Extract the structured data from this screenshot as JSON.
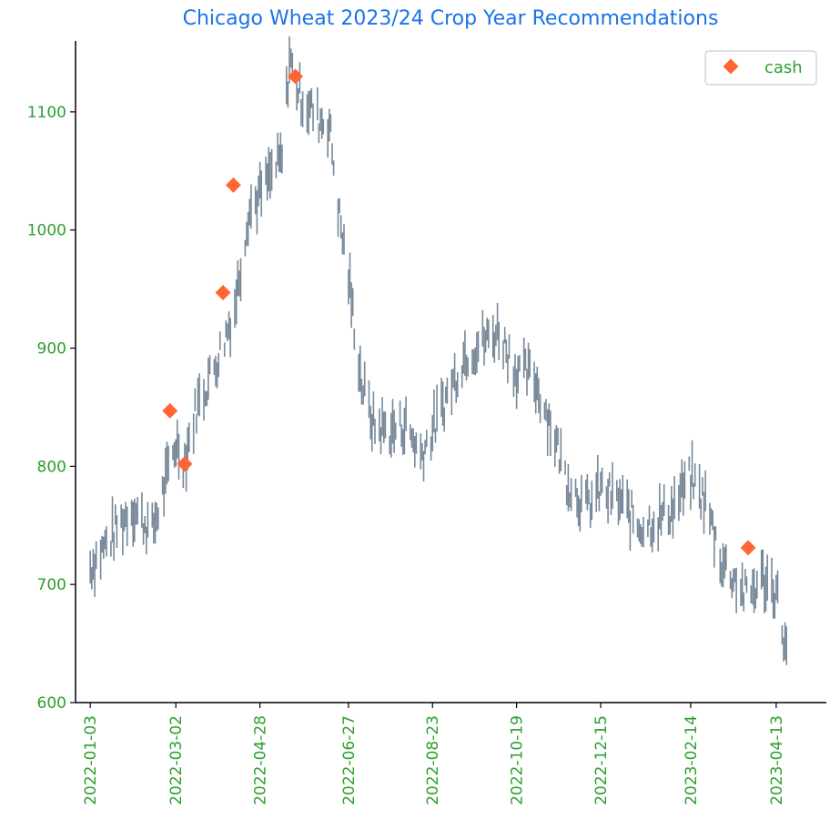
{
  "chart_data": {
    "type": "line",
    "title": "Chicago Wheat 2023/24 Crop Year Recommendations",
    "xlabel": "",
    "ylabel": "",
    "ylim": [
      600,
      1160
    ],
    "xlim": [
      "2021-12-24",
      "2023-05-17"
    ],
    "y_ticks": [
      600,
      700,
      800,
      900,
      1000,
      1100
    ],
    "x_ticks": [
      "2022-01-03",
      "2022-03-02",
      "2022-04-28",
      "2022-06-27",
      "2022-08-23",
      "2022-10-19",
      "2022-12-15",
      "2023-02-14",
      "2023-04-13"
    ],
    "grid": false,
    "legend": {
      "position": "top-right",
      "entries": [
        "cash"
      ]
    },
    "colors": {
      "price": "#778899",
      "cash": "#ff6633",
      "title": "#1a73e8",
      "ticks": "#2ca02c"
    },
    "series": [
      {
        "kind": "price-range",
        "x": [
          "2022-01-03",
          "2022-01-17",
          "2022-01-31",
          "2022-02-14",
          "2022-02-24",
          "2022-03-02",
          "2022-03-08",
          "2022-03-16",
          "2022-03-30",
          "2022-04-11",
          "2022-04-20",
          "2022-04-28",
          "2022-05-05",
          "2022-05-13",
          "2022-05-18",
          "2022-05-25",
          "2022-06-06",
          "2022-06-14",
          "2022-06-21",
          "2022-06-27",
          "2022-07-06",
          "2022-07-14",
          "2022-07-26",
          "2022-08-05",
          "2022-08-15",
          "2022-08-23",
          "2022-09-02",
          "2022-09-14",
          "2022-09-26",
          "2022-10-07",
          "2022-10-19",
          "2022-10-31",
          "2022-11-10",
          "2022-11-22",
          "2022-12-05",
          "2022-12-15",
          "2022-12-28",
          "2023-01-10",
          "2023-01-23",
          "2023-02-02",
          "2023-02-14",
          "2023-02-24",
          "2023-03-07",
          "2023-03-16",
          "2023-03-24",
          "2023-04-04",
          "2023-04-13",
          "2023-04-20"
        ],
        "values": [
          715,
          740,
          765,
          745,
          790,
          820,
          805,
          850,
          890,
          935,
          1015,
          1030,
          1045,
          1060,
          1145,
          1115,
          1095,
          1090,
          1010,
          960,
          870,
          835,
          830,
          835,
          810,
          830,
          860,
          895,
          905,
          915,
          880,
          875,
          840,
          790,
          765,
          780,
          770,
          750,
          755,
          765,
          790,
          770,
          720,
          705,
          690,
          705,
          695,
          640
        ]
      },
      {
        "name": "cash",
        "kind": "marker",
        "x": [
          "2022-02-26",
          "2022-03-08",
          "2022-04-03",
          "2022-04-10",
          "2022-05-22",
          "2023-03-25"
        ],
        "values": [
          847,
          802,
          947,
          1038,
          1130,
          731
        ]
      }
    ]
  }
}
